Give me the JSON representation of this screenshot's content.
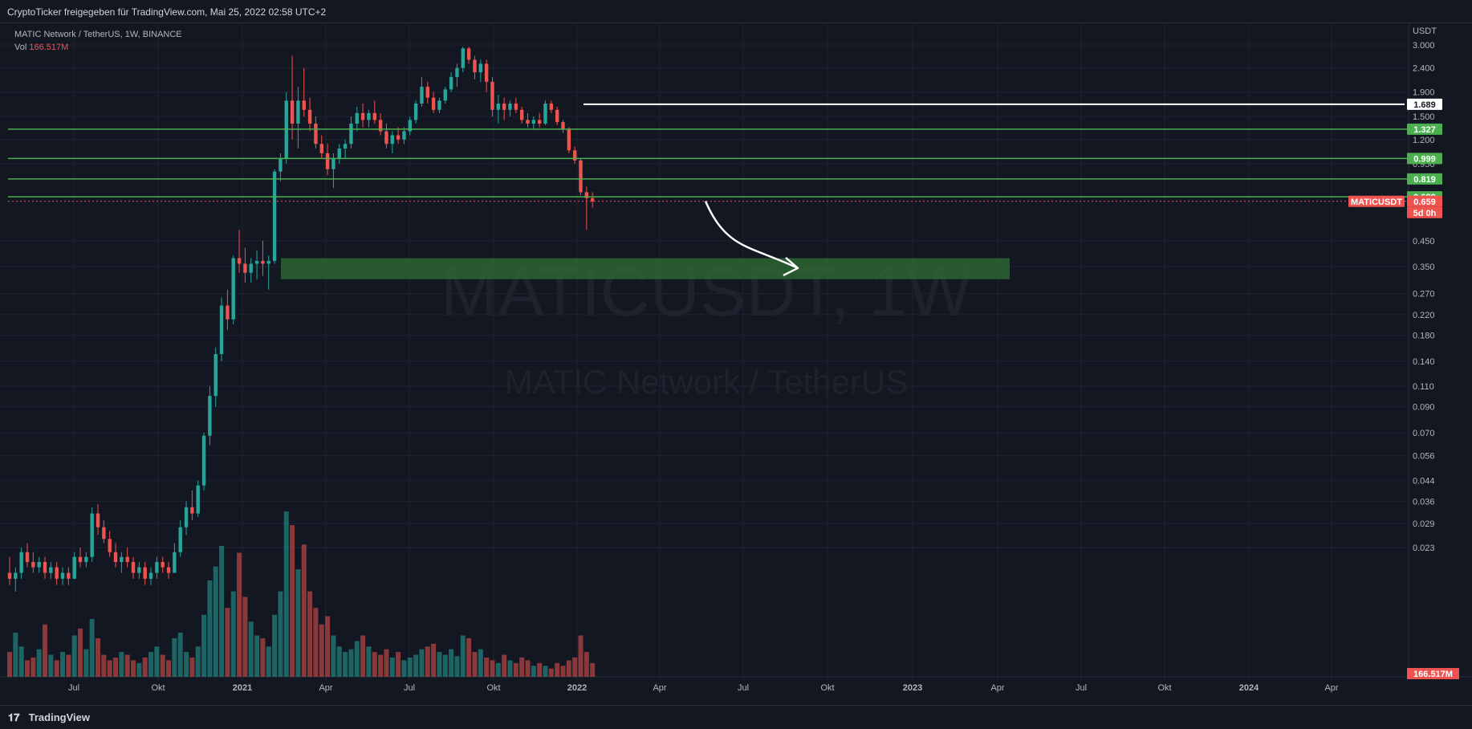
{
  "header": {
    "share_text": "CryptoTicker freigegeben für TradingView.com, Mai 25, 2022 02:58 UTC+2"
  },
  "legend": {
    "symbol_line": "MATIC Network / TetherUS, 1W, BINANCE",
    "vol_label": "Vol",
    "vol_value": "166.517M"
  },
  "watermark": {
    "ticker": "MATICUSDT, 1W",
    "name": "MATIC Network / TetherUS"
  },
  "footer": {
    "brand": "TradingView"
  },
  "colors": {
    "background": "#131722",
    "up": "#26a69a",
    "down": "#ef5350",
    "level_line": "#4caf50",
    "zone": "#2e6b32",
    "white_line": "#ffffff"
  },
  "chart_data": {
    "type": "candlestick",
    "scale": "log",
    "y_axis_unit": "USDT",
    "y_ticks": [
      "3.000",
      "2.400",
      "1.900",
      "1.500",
      "1.200",
      "0.950",
      "0.450",
      "0.350",
      "0.270",
      "0.220",
      "0.180",
      "0.140",
      "0.110",
      "0.090",
      "0.070",
      "0.056",
      "0.044",
      "0.036",
      "0.029",
      "0.023"
    ],
    "x_ticks": [
      "Jul",
      "Okt",
      "2021",
      "Apr",
      "Jul",
      "Okt",
      "2022",
      "Apr",
      "Jul",
      "Okt",
      "2023",
      "Apr",
      "Jul",
      "Okt",
      "2024",
      "Apr"
    ],
    "horizontal_levels": [
      {
        "price": 1.689,
        "label": "1.689",
        "color": "#ffffff"
      },
      {
        "price": 1.327,
        "label": "1.327",
        "color": "#4caf50"
      },
      {
        "price": 0.999,
        "label": "0.999",
        "color": "#4caf50"
      },
      {
        "price": 0.819,
        "label": "0.819",
        "color": "#4caf50"
      },
      {
        "price": 0.689,
        "label": "0.689",
        "color": "#4caf50"
      }
    ],
    "current_price": {
      "value": "0.659",
      "symbol": "MATICUSDT",
      "countdown": "5d 0h"
    },
    "volume_badge": "166.517M",
    "support_zone": {
      "low": 0.31,
      "high": 0.38
    },
    "projection_arrow": {
      "from_price": 0.66,
      "to_price": 0.345
    },
    "candles": [
      [
        0.018,
        0.021,
        0.016,
        0.017
      ],
      [
        0.017,
        0.019,
        0.015,
        0.018
      ],
      [
        0.018,
        0.023,
        0.017,
        0.022
      ],
      [
        0.022,
        0.024,
        0.019,
        0.02
      ],
      [
        0.02,
        0.022,
        0.018,
        0.019
      ],
      [
        0.019,
        0.021,
        0.018,
        0.02
      ],
      [
        0.02,
        0.021,
        0.017,
        0.018
      ],
      [
        0.018,
        0.02,
        0.017,
        0.019
      ],
      [
        0.019,
        0.02,
        0.016,
        0.017
      ],
      [
        0.017,
        0.019,
        0.016,
        0.018
      ],
      [
        0.018,
        0.019,
        0.016,
        0.017
      ],
      [
        0.017,
        0.022,
        0.017,
        0.021
      ],
      [
        0.021,
        0.023,
        0.019,
        0.02
      ],
      [
        0.02,
        0.022,
        0.019,
        0.021
      ],
      [
        0.021,
        0.034,
        0.02,
        0.032
      ],
      [
        0.032,
        0.035,
        0.026,
        0.028
      ],
      [
        0.028,
        0.03,
        0.024,
        0.025
      ],
      [
        0.025,
        0.027,
        0.021,
        0.022
      ],
      [
        0.022,
        0.024,
        0.019,
        0.02
      ],
      [
        0.02,
        0.022,
        0.018,
        0.021
      ],
      [
        0.021,
        0.023,
        0.019,
        0.02
      ],
      [
        0.02,
        0.021,
        0.017,
        0.018
      ],
      [
        0.018,
        0.02,
        0.017,
        0.019
      ],
      [
        0.019,
        0.02,
        0.016,
        0.017
      ],
      [
        0.017,
        0.019,
        0.016,
        0.018
      ],
      [
        0.018,
        0.021,
        0.017,
        0.02
      ],
      [
        0.02,
        0.021,
        0.018,
        0.019
      ],
      [
        0.019,
        0.02,
        0.017,
        0.018
      ],
      [
        0.018,
        0.024,
        0.018,
        0.022
      ],
      [
        0.022,
        0.03,
        0.021,
        0.028
      ],
      [
        0.028,
        0.036,
        0.026,
        0.034
      ],
      [
        0.034,
        0.04,
        0.03,
        0.032
      ],
      [
        0.032,
        0.044,
        0.031,
        0.042
      ],
      [
        0.042,
        0.07,
        0.04,
        0.068
      ],
      [
        0.068,
        0.11,
        0.062,
        0.1
      ],
      [
        0.1,
        0.16,
        0.09,
        0.15
      ],
      [
        0.15,
        0.26,
        0.14,
        0.24
      ],
      [
        0.24,
        0.28,
        0.19,
        0.21
      ],
      [
        0.21,
        0.39,
        0.2,
        0.38
      ],
      [
        0.38,
        0.5,
        0.33,
        0.36
      ],
      [
        0.36,
        0.42,
        0.3,
        0.33
      ],
      [
        0.33,
        0.38,
        0.3,
        0.36
      ],
      [
        0.36,
        0.41,
        0.31,
        0.37
      ],
      [
        0.37,
        0.45,
        0.32,
        0.36
      ],
      [
        0.36,
        0.39,
        0.28,
        0.37
      ],
      [
        0.37,
        0.9,
        0.36,
        0.88
      ],
      [
        0.88,
        1.05,
        0.8,
        1.0
      ],
      [
        1.0,
        1.9,
        0.95,
        1.75
      ],
      [
        1.75,
        2.7,
        1.2,
        1.4
      ],
      [
        1.4,
        2.0,
        1.1,
        1.75
      ],
      [
        1.75,
        2.4,
        1.5,
        1.6
      ],
      [
        1.6,
        1.8,
        1.3,
        1.4
      ],
      [
        1.4,
        1.5,
        1.1,
        1.15
      ],
      [
        1.15,
        1.25,
        1.0,
        1.05
      ],
      [
        1.05,
        1.15,
        0.85,
        0.9
      ],
      [
        0.9,
        1.05,
        0.75,
        1.0
      ],
      [
        1.0,
        1.15,
        0.95,
        1.1
      ],
      [
        1.1,
        1.2,
        1.0,
        1.15
      ],
      [
        1.15,
        1.5,
        1.1,
        1.4
      ],
      [
        1.4,
        1.65,
        1.3,
        1.55
      ],
      [
        1.55,
        1.7,
        1.35,
        1.45
      ],
      [
        1.45,
        1.6,
        1.35,
        1.55
      ],
      [
        1.55,
        1.75,
        1.4,
        1.45
      ],
      [
        1.45,
        1.55,
        1.25,
        1.3
      ],
      [
        1.3,
        1.4,
        1.1,
        1.15
      ],
      [
        1.15,
        1.3,
        1.05,
        1.25
      ],
      [
        1.25,
        1.35,
        1.15,
        1.2
      ],
      [
        1.2,
        1.35,
        1.15,
        1.3
      ],
      [
        1.3,
        1.5,
        1.25,
        1.45
      ],
      [
        1.45,
        1.75,
        1.4,
        1.7
      ],
      [
        1.7,
        2.2,
        1.65,
        2.0
      ],
      [
        2.0,
        2.1,
        1.7,
        1.8
      ],
      [
        1.8,
        1.9,
        1.55,
        1.6
      ],
      [
        1.6,
        1.8,
        1.55,
        1.75
      ],
      [
        1.75,
        2.0,
        1.7,
        1.95
      ],
      [
        1.95,
        2.3,
        1.9,
        2.2
      ],
      [
        2.2,
        2.5,
        2.0,
        2.4
      ],
      [
        2.4,
        2.95,
        2.3,
        2.9
      ],
      [
        2.9,
        2.95,
        2.5,
        2.6
      ],
      [
        2.6,
        2.7,
        2.15,
        2.3
      ],
      [
        2.3,
        2.6,
        2.1,
        2.5
      ],
      [
        2.5,
        2.6,
        1.9,
        2.1
      ],
      [
        2.1,
        2.2,
        1.5,
        1.6
      ],
      [
        1.6,
        1.85,
        1.4,
        1.7
      ],
      [
        1.7,
        1.8,
        1.45,
        1.6
      ],
      [
        1.6,
        1.75,
        1.5,
        1.7
      ],
      [
        1.7,
        1.8,
        1.55,
        1.6
      ],
      [
        1.6,
        1.65,
        1.4,
        1.45
      ],
      [
        1.45,
        1.55,
        1.35,
        1.4
      ],
      [
        1.4,
        1.5,
        1.32,
        1.45
      ],
      [
        1.45,
        1.55,
        1.35,
        1.4
      ],
      [
        1.4,
        1.75,
        1.38,
        1.7
      ],
      [
        1.7,
        1.75,
        1.55,
        1.6
      ],
      [
        1.6,
        1.65,
        1.38,
        1.42
      ],
      [
        1.42,
        1.45,
        1.28,
        1.33
      ],
      [
        1.33,
        1.35,
        1.05,
        1.08
      ],
      [
        1.08,
        1.12,
        0.95,
        0.98
      ],
      [
        0.98,
        1.0,
        0.7,
        0.72
      ],
      [
        0.72,
        0.76,
        0.5,
        0.68
      ],
      [
        0.68,
        0.72,
        0.62,
        0.659
      ]
    ],
    "volumes": [
      18,
      32,
      22,
      12,
      14,
      20,
      38,
      16,
      12,
      18,
      16,
      30,
      35,
      20,
      42,
      28,
      16,
      12,
      14,
      18,
      16,
      12,
      10,
      14,
      18,
      22,
      16,
      12,
      28,
      32,
      18,
      14,
      22,
      45,
      70,
      80,
      95,
      50,
      62,
      90,
      58,
      40,
      30,
      28,
      22,
      45,
      62,
      120,
      110,
      78,
      96,
      62,
      50,
      38,
      44,
      30,
      22,
      18,
      20,
      26,
      30,
      22,
      18,
      16,
      20,
      14,
      18,
      12,
      14,
      16,
      20,
      22,
      24,
      18,
      16,
      20,
      15,
      30,
      28,
      18,
      20,
      14,
      12,
      10,
      16,
      12,
      10,
      14,
      12,
      8,
      10,
      8,
      6,
      10,
      8,
      12,
      14,
      30,
      18,
      10
    ]
  }
}
